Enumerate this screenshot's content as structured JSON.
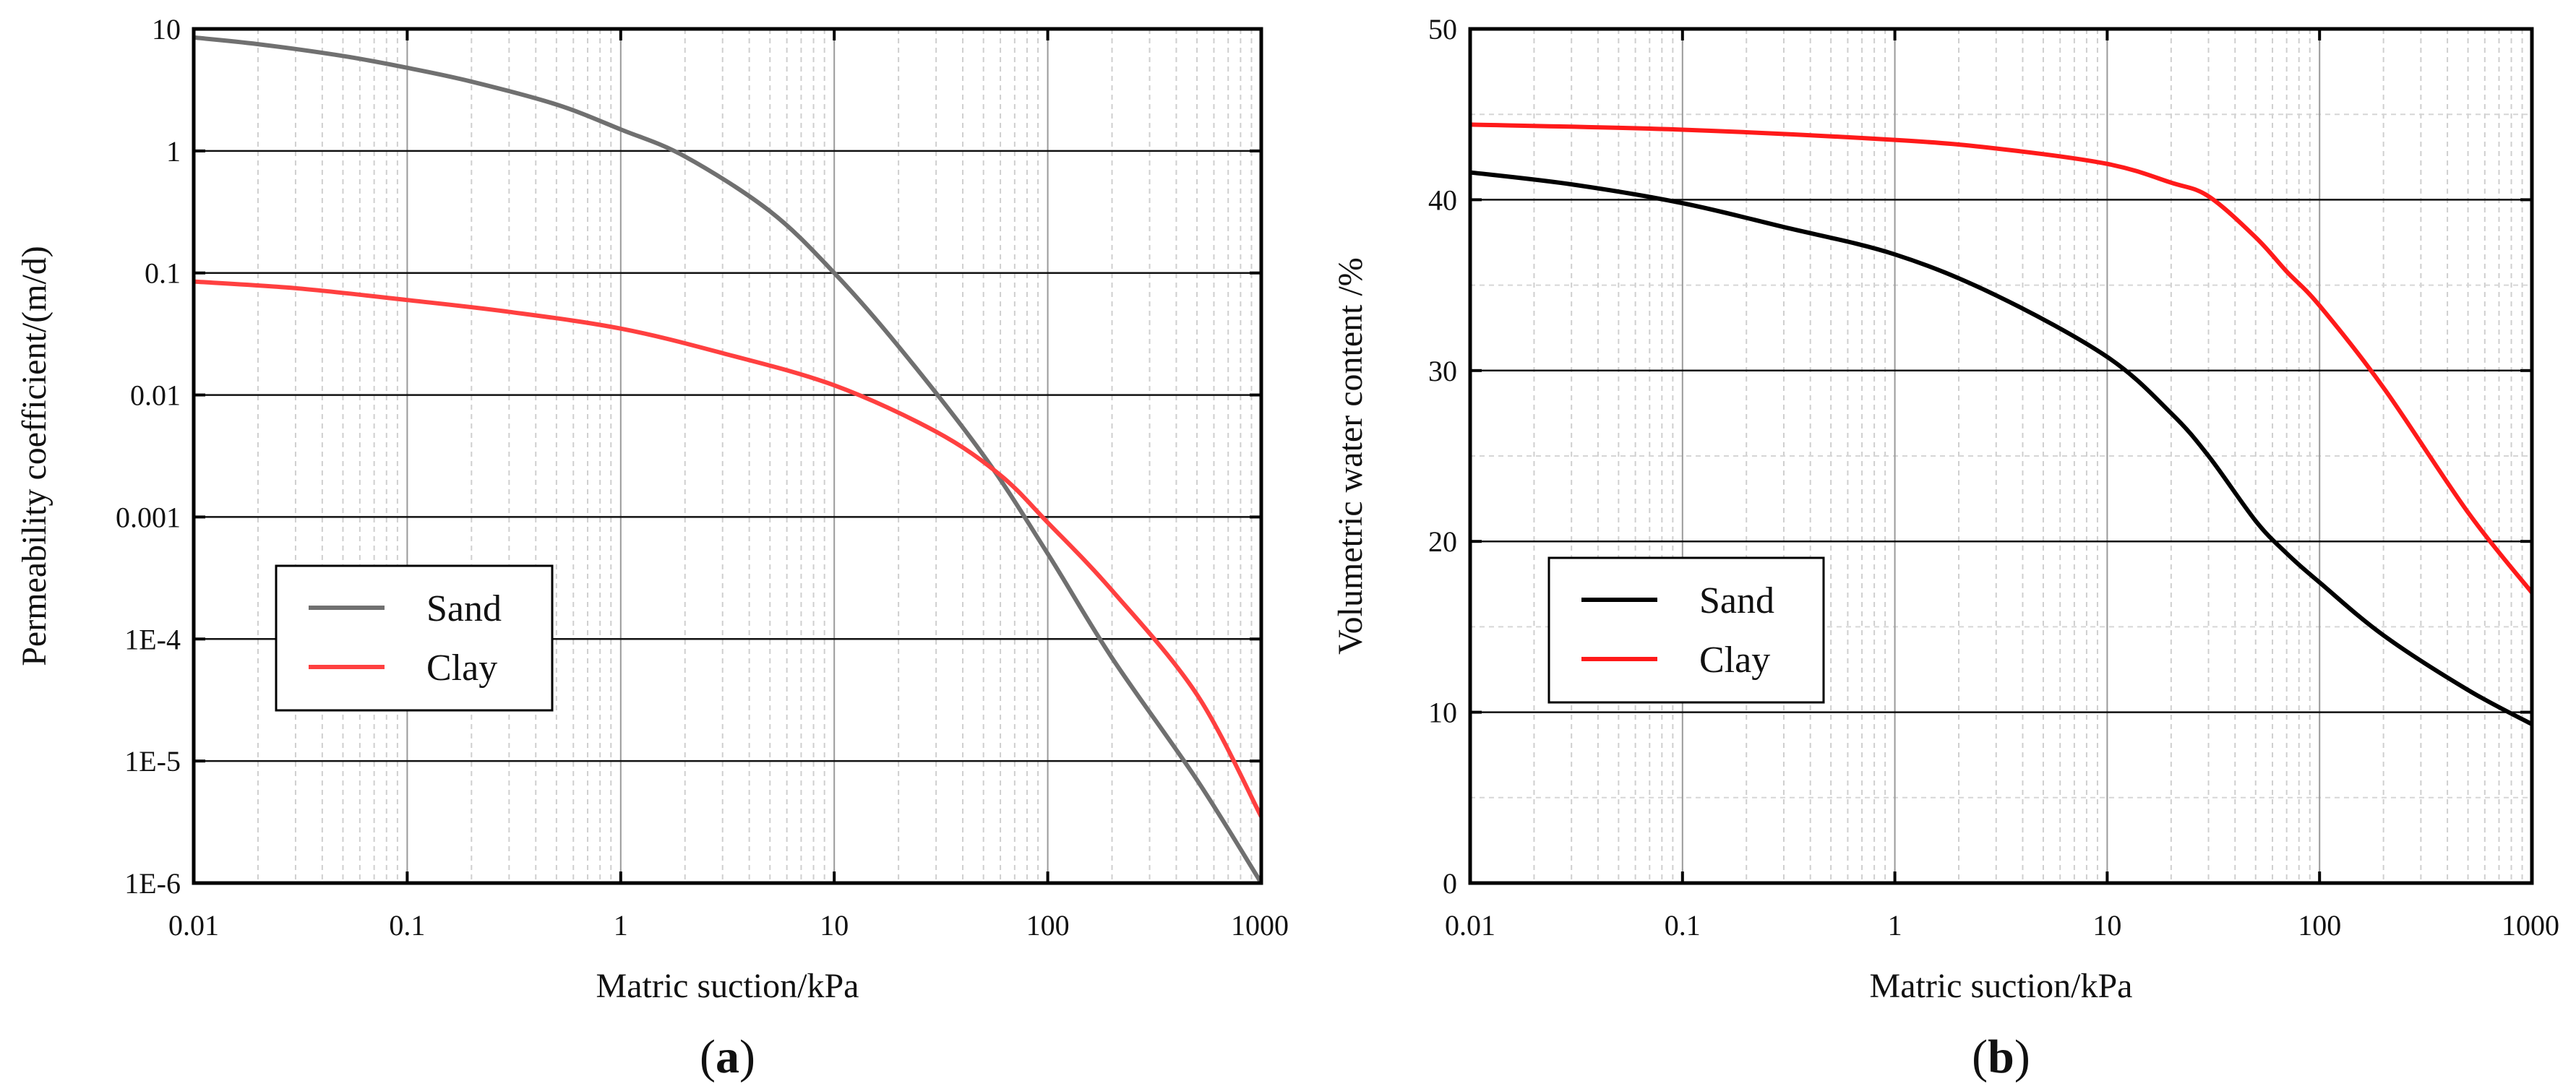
{
  "chart_data": [
    {
      "type": "line",
      "panel_label": "a",
      "xlabel": "Matric suction/kPa",
      "ylabel": "Permeability coefficient/(m/d)",
      "xscale": "log",
      "yscale": "log",
      "xlim": [
        0.01,
        1000
      ],
      "ylim": [
        1e-06,
        10
      ],
      "x_ticks": [
        0.01,
        0.1,
        1,
        10,
        100,
        1000
      ],
      "x_tick_labels": [
        "0.01",
        "0.1",
        "1",
        "10",
        "100",
        "1000"
      ],
      "y_ticks": [
        1e-06,
        1e-05,
        0.0001,
        0.001,
        0.01,
        0.1,
        1,
        10
      ],
      "y_tick_labels": [
        "1E-6",
        "1E-5",
        "1E-4",
        "0.001",
        "0.01",
        "0.1",
        "1",
        "10"
      ],
      "legend_position": "lower-left",
      "series": [
        {
          "name": "Sand",
          "color": "#707070",
          "x": [
            0.01,
            0.02,
            0.05,
            0.1,
            0.2,
            0.5,
            1,
            2,
            5,
            10,
            20,
            50,
            100,
            200,
            500,
            1000
          ],
          "y": [
            8.5,
            7.5,
            6.0,
            4.8,
            3.7,
            2.4,
            1.5,
            0.9,
            0.32,
            0.1,
            0.025,
            0.0032,
            0.0005,
            7e-05,
            7e-06,
            1e-06
          ]
        },
        {
          "name": "Clay",
          "color": "#ff4040",
          "x": [
            0.01,
            0.03,
            0.1,
            0.3,
            1,
            3,
            10,
            30,
            60,
            100,
            200,
            500,
            1000
          ],
          "y": [
            0.085,
            0.075,
            0.06,
            0.048,
            0.035,
            0.022,
            0.012,
            0.005,
            0.0022,
            0.0009,
            0.00025,
            3.5e-05,
            3.5e-06
          ]
        }
      ]
    },
    {
      "type": "line",
      "panel_label": "b",
      "xlabel": "Matric suction/kPa",
      "ylabel": "Volumetric water content /%",
      "xscale": "log",
      "yscale": "linear",
      "xlim": [
        0.01,
        1000
      ],
      "ylim": [
        0,
        50
      ],
      "x_ticks": [
        0.01,
        0.1,
        1,
        10,
        100,
        1000
      ],
      "x_tick_labels": [
        "0.01",
        "0.1",
        "1",
        "10",
        "100",
        "1000"
      ],
      "y_ticks": [
        0,
        10,
        20,
        30,
        40,
        50
      ],
      "y_tick_labels": [
        "0",
        "10",
        "20",
        "30",
        "40",
        "50"
      ],
      "legend_position": "lower-left",
      "series": [
        {
          "name": "Sand",
          "color": "#000000",
          "x": [
            0.01,
            0.03,
            0.1,
            0.3,
            1,
            3,
            10,
            20,
            30,
            50,
            70,
            100,
            200,
            500,
            1000
          ],
          "y": [
            41.6,
            40.9,
            39.8,
            38.4,
            36.8,
            34.4,
            30.8,
            27.5,
            25.0,
            21.2,
            19.3,
            17.6,
            14.5,
            11.3,
            9.3
          ]
        },
        {
          "name": "Clay",
          "color": "#ff1a1a",
          "x": [
            0.01,
            0.1,
            1,
            3,
            10,
            20,
            30,
            50,
            70,
            100,
            200,
            500,
            1000
          ],
          "y": [
            44.4,
            44.1,
            43.5,
            43.0,
            42.1,
            41.0,
            40.2,
            37.8,
            35.8,
            33.8,
            29.0,
            21.7,
            17.0
          ]
        }
      ]
    }
  ]
}
